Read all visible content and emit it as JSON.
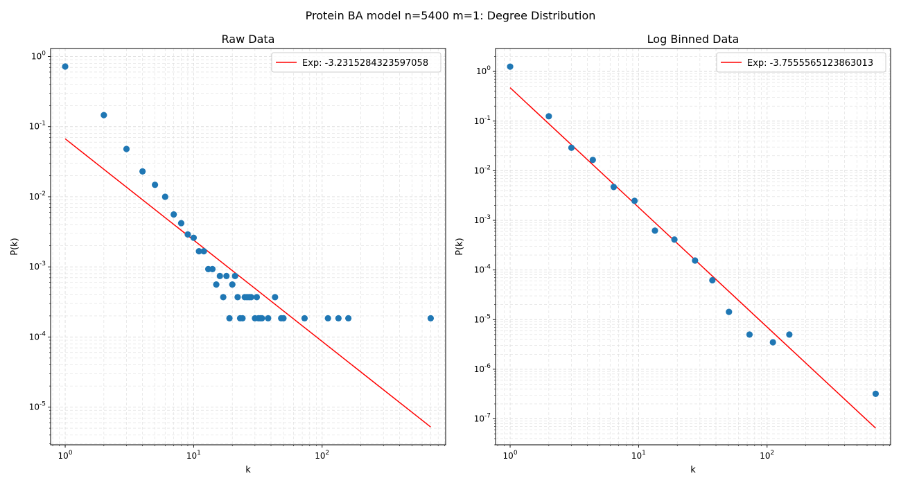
{
  "figure_title": "Protein BA model n=5400 m=1: Degree Distribution",
  "chart_data": [
    {
      "type": "scatter",
      "title": "Raw Data",
      "xlabel": "k",
      "ylabel": "P(k)",
      "xscale": "log",
      "yscale": "log",
      "xlim": [
        0.77,
        915
      ],
      "ylim": [
        2.9e-06,
        1.3
      ],
      "xticks": [
        1,
        10,
        100
      ],
      "xtick_labels": [
        "10^0",
        "10^1",
        "10^2"
      ],
      "yticks": [
        1e-05,
        0.0001,
        0.001,
        0.01,
        0.1,
        1
      ],
      "ytick_labels": [
        "10^-5",
        "10^-4",
        "10^-3",
        "10^-2",
        "10^-1",
        "10^0"
      ],
      "grid": true,
      "legend_position": "top-right",
      "points": {
        "x": [
          1,
          2,
          3,
          4,
          5,
          6,
          7,
          8,
          9,
          10,
          11,
          12,
          13,
          14,
          15,
          16,
          17,
          18,
          19,
          20,
          21,
          22,
          23,
          24,
          25,
          26,
          27,
          28,
          30,
          31,
          32,
          33,
          34,
          38,
          43,
          48,
          50,
          73,
          111,
          134,
          160,
          700
        ],
        "y": [
          0.72,
          0.146,
          0.048,
          0.023,
          0.0148,
          0.01,
          0.0056,
          0.0042,
          0.0029,
          0.0026,
          0.00167,
          0.00167,
          0.00093,
          0.00093,
          0.00056,
          0.00074,
          0.00037,
          0.00074,
          0.000185,
          0.00056,
          0.00074,
          0.00037,
          0.000185,
          0.000185,
          0.00037,
          0.00037,
          0.00037,
          0.00037,
          0.000185,
          0.00037,
          0.000185,
          0.000185,
          0.000185,
          0.000185,
          0.00037,
          0.000185,
          0.000185,
          0.000185,
          0.000185,
          0.000185,
          0.000185,
          0.000185
        ]
      },
      "fit": {
        "name": "Exp: -3.2315284323597058",
        "x": [
          1,
          700
        ],
        "y": [
          0.067,
          5.2e-06
        ],
        "color": "#ff0000"
      }
    },
    {
      "type": "scatter",
      "title": "Log Binned Data",
      "xlabel": "k",
      "ylabel": "P(k)",
      "xscale": "log",
      "yscale": "log",
      "xlim": [
        0.77,
        915
      ],
      "ylim": [
        3e-08,
        2.9
      ],
      "xticks": [
        1,
        10,
        100
      ],
      "xtick_labels": [
        "10^0",
        "10^1",
        "10^2"
      ],
      "yticks": [
        1e-07,
        1e-06,
        1e-05,
        0.0001,
        0.001,
        0.01,
        0.1,
        1
      ],
      "ytick_labels": [
        "10^-7",
        "10^-6",
        "10^-5",
        "10^-4",
        "10^-3",
        "10^-2",
        "10^-1",
        "10^0"
      ],
      "grid": true,
      "legend_position": "top-right",
      "points": {
        "x": [
          1,
          2,
          3,
          4.4,
          6.4,
          9.3,
          13.4,
          19.0,
          27.5,
          37.5,
          50.5,
          73,
          111,
          149,
          700
        ],
        "y": [
          1.25,
          0.125,
          0.029,
          0.0165,
          0.0047,
          0.00247,
          0.00062,
          0.00041,
          0.000155,
          6.2e-05,
          1.43e-05,
          5e-06,
          3.5e-06,
          5e-06,
          3.2e-07
        ]
      },
      "fit": {
        "name": "Exp: -3.7555565123863013",
        "x": [
          1,
          700
        ],
        "y": [
          0.47,
          6.5e-08
        ],
        "color": "#ff0000"
      }
    }
  ],
  "colors": {
    "points": "#1f77b4",
    "fit_line": "#ff0000",
    "grid": "#dddddd"
  }
}
